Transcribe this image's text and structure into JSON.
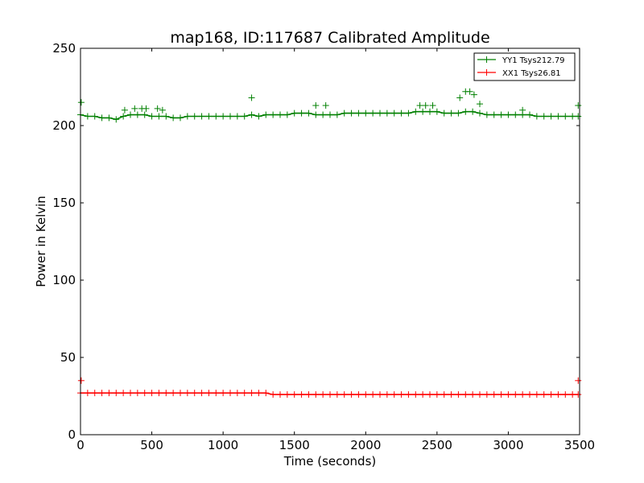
{
  "chart_data": {
    "type": "scatter",
    "title": "map168, ID:117687 Calibrated Amplitude",
    "xlabel": "Time (seconds)",
    "ylabel": "Power in Kelvin",
    "xlim": [
      0,
      3500
    ],
    "ylim": [
      0,
      250
    ],
    "xticks": [
      "0",
      "500",
      "1000",
      "1500",
      "2000",
      "2500",
      "3000",
      "3500"
    ],
    "yticks": [
      "0",
      "50",
      "100",
      "150",
      "200",
      "250"
    ],
    "xtick_values": [
      0,
      500,
      1000,
      1500,
      2000,
      2500,
      3000,
      3500
    ],
    "ytick_values": [
      0,
      50,
      100,
      150,
      200,
      250
    ],
    "grid": false,
    "legend_position": "top-right",
    "marker": "plus",
    "series": [
      {
        "name": "YY1 Tsys212.79",
        "color": "#008000",
        "x": [
          0,
          50,
          100,
          150,
          200,
          250,
          300,
          350,
          400,
          450,
          500,
          550,
          600,
          650,
          700,
          750,
          800,
          850,
          900,
          950,
          1000,
          1050,
          1100,
          1150,
          1200,
          1250,
          1300,
          1350,
          1400,
          1450,
          1500,
          1550,
          1600,
          1650,
          1700,
          1750,
          1800,
          1850,
          1900,
          1950,
          2000,
          2050,
          2100,
          2150,
          2200,
          2250,
          2300,
          2350,
          2400,
          2450,
          2500,
          2550,
          2600,
          2650,
          2700,
          2750,
          2800,
          2850,
          2900,
          2950,
          3000,
          3050,
          3100,
          3150,
          3200,
          3250,
          3300,
          3350,
          3400,
          3450,
          3490
        ],
        "y": [
          207,
          206,
          206,
          205,
          205,
          204,
          206,
          207,
          207,
          207,
          206,
          206,
          206,
          205,
          205,
          206,
          206,
          206,
          206,
          206,
          206,
          206,
          206,
          206,
          207,
          206,
          207,
          207,
          207,
          207,
          208,
          208,
          208,
          207,
          207,
          207,
          207,
          208,
          208,
          208,
          208,
          208,
          208,
          208,
          208,
          208,
          208,
          209,
          209,
          209,
          209,
          208,
          208,
          208,
          209,
          209,
          208,
          207,
          207,
          207,
          207,
          207,
          207,
          207,
          206,
          206,
          206,
          206,
          206,
          206,
          206
        ],
        "outliers_x": [
          5,
          310,
          380,
          430,
          460,
          540,
          575,
          1200,
          1650,
          1720,
          2380,
          2420,
          2470,
          2660,
          2700,
          2730,
          2760,
          2800,
          3100,
          3490
        ],
        "outliers_y": [
          215,
          210,
          211,
          211,
          211,
          211,
          210,
          218,
          213,
          213,
          213,
          213,
          213,
          218,
          222,
          222,
          220,
          214,
          210,
          213
        ]
      },
      {
        "name": "XX1 Tsys26.81",
        "color": "#ff0000",
        "x": [
          0,
          50,
          100,
          150,
          200,
          250,
          300,
          350,
          400,
          450,
          500,
          550,
          600,
          650,
          700,
          750,
          800,
          850,
          900,
          950,
          1000,
          1050,
          1100,
          1150,
          1200,
          1250,
          1300,
          1350,
          1400,
          1450,
          1500,
          1550,
          1600,
          1650,
          1700,
          1750,
          1800,
          1850,
          1900,
          1950,
          2000,
          2050,
          2100,
          2150,
          2200,
          2250,
          2300,
          2350,
          2400,
          2450,
          2500,
          2550,
          2600,
          2650,
          2700,
          2750,
          2800,
          2850,
          2900,
          2950,
          3000,
          3050,
          3100,
          3150,
          3200,
          3250,
          3300,
          3350,
          3400,
          3450,
          3490
        ],
        "y": [
          27,
          27,
          27,
          27,
          27,
          27,
          27,
          27,
          27,
          27,
          27,
          27,
          27,
          27,
          27,
          27,
          27,
          27,
          27,
          27,
          27,
          27,
          27,
          27,
          27,
          27,
          27,
          26,
          26,
          26,
          26,
          26,
          26,
          26,
          26,
          26,
          26,
          26,
          26,
          26,
          26,
          26,
          26,
          26,
          26,
          26,
          26,
          26,
          26,
          26,
          26,
          26,
          26,
          26,
          26,
          26,
          26,
          26,
          26,
          26,
          26,
          26,
          26,
          26,
          26,
          26,
          26,
          26,
          26,
          26,
          26
        ],
        "outliers_x": [
          5,
          3490
        ],
        "outliers_y": [
          35,
          35
        ]
      }
    ]
  }
}
